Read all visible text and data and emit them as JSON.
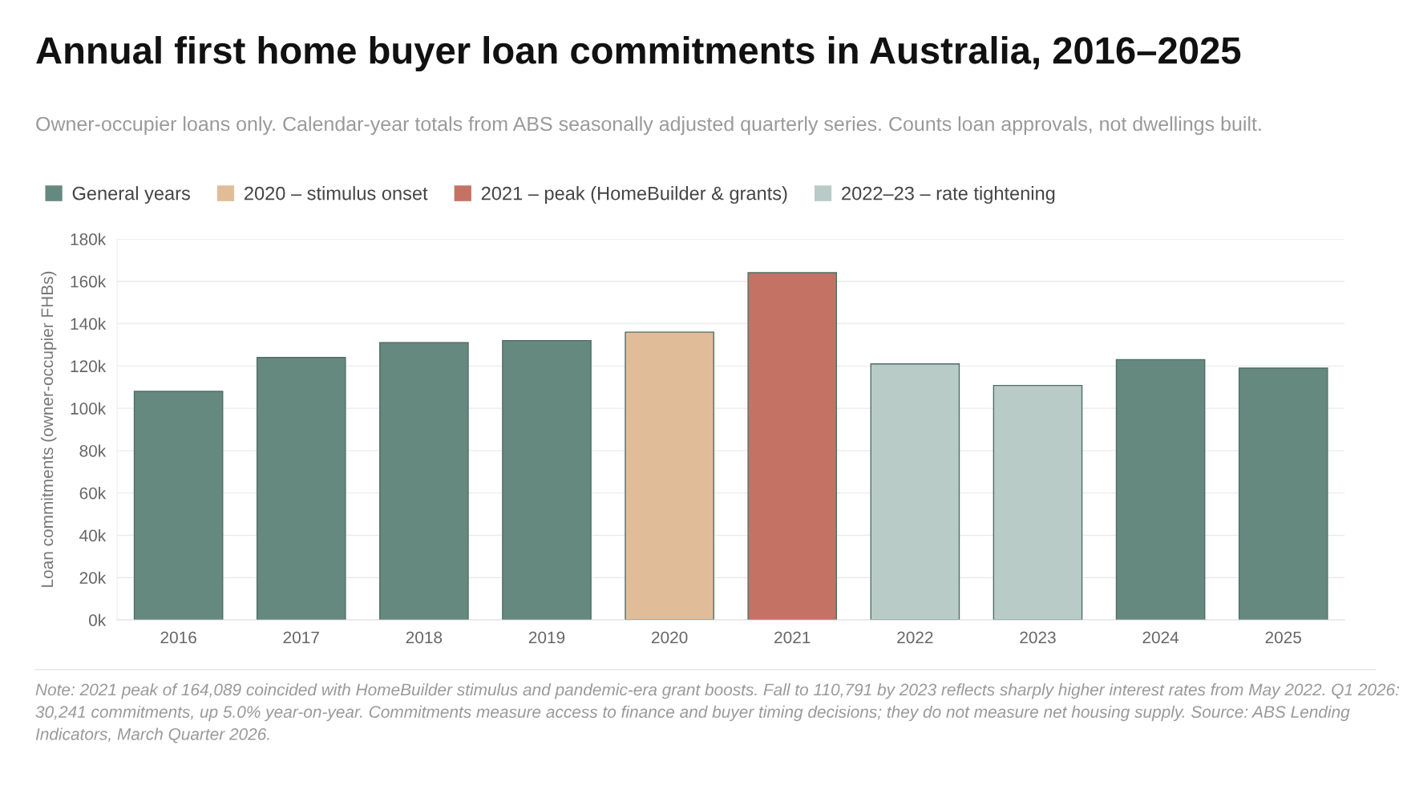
{
  "chart_data": {
    "type": "bar",
    "title": "Annual first home buyer loan commitments in Australia, 2016–2025",
    "subtitle": "Owner-occupier loans only. Calendar-year totals from ABS seasonally adjusted quarterly series. Counts loan approvals, not dwellings built.",
    "ylabel": "Loan commitments (owner-occupier FHBs)",
    "categories": [
      "2016",
      "2017",
      "2018",
      "2019",
      "2020",
      "2021",
      "2022",
      "2023",
      "2024",
      "2025"
    ],
    "series": [
      {
        "name": "General years",
        "color": "#66897f",
        "values": [
          108000,
          124000,
          131000,
          132000,
          null,
          null,
          null,
          null,
          123000,
          119000
        ]
      },
      {
        "name": "2020 – stimulus onset",
        "color": "#e0bd98",
        "values": [
          null,
          null,
          null,
          null,
          136000,
          null,
          null,
          null,
          null,
          null
        ]
      },
      {
        "name": "2021 – peak (HomeBuilder & grants)",
        "color": "#c47264",
        "values": [
          null,
          null,
          null,
          null,
          null,
          164089,
          null,
          null,
          null,
          null
        ]
      },
      {
        "name": "2022–23 – rate tightening",
        "color": "#b9cbc6",
        "values": [
          null,
          null,
          null,
          null,
          null,
          null,
          121000,
          110791,
          null,
          null
        ]
      }
    ],
    "ylim": [
      0,
      180000
    ],
    "yticks": [
      {
        "value": 0,
        "label": "0k"
      },
      {
        "value": 20000,
        "label": "20k"
      },
      {
        "value": 40000,
        "label": "40k"
      },
      {
        "value": 60000,
        "label": "60k"
      },
      {
        "value": 80000,
        "label": "80k"
      },
      {
        "value": 100000,
        "label": "100k"
      },
      {
        "value": 120000,
        "label": "120k"
      },
      {
        "value": 140000,
        "label": "140k"
      },
      {
        "value": 160000,
        "label": "160k"
      },
      {
        "value": 180000,
        "label": "180k"
      }
    ],
    "grid": "y",
    "legend": "top left",
    "annotations": [
      "Note: 2021 peak of 164,089 coincided with HomeBuilder stimulus and pandemic-era grant boosts. Fall to 110,791 by 2023 reflects sharply higher interest rates from May 2022. Q1 2026: 30,241 commitments, up 5.0% year-on-year. Commitments measure access to finance and buyer timing decisions; they do not measure net housing supply. Source: ABS Lending Indicators, March Quarter 2026."
    ]
  }
}
